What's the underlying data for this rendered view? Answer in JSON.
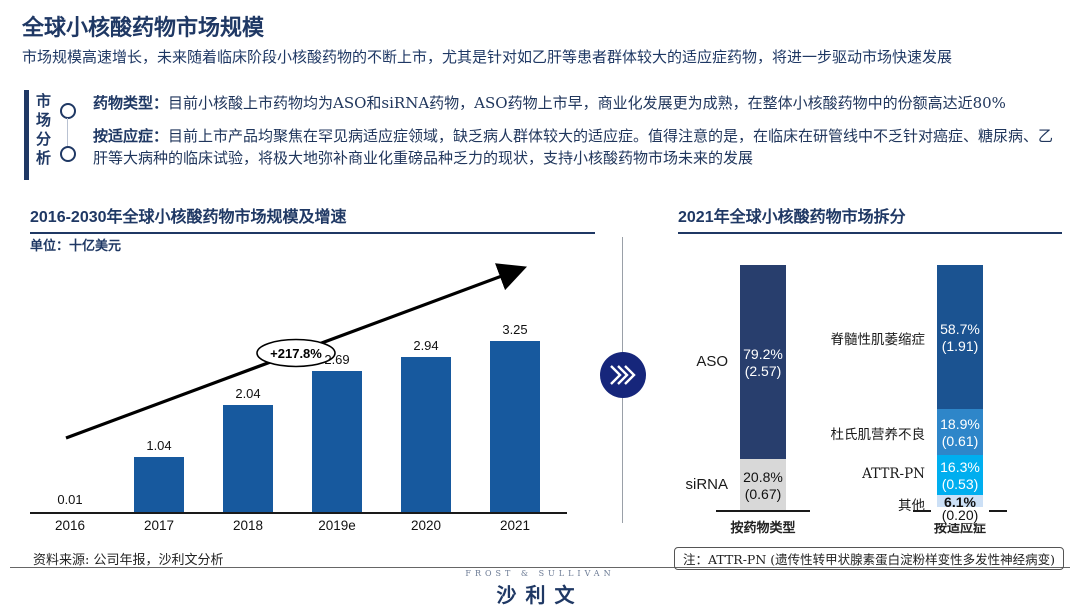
{
  "page": {
    "title": "全球小核酸药物市场规模",
    "subtitle": "市场规模高速增长，未来随着临床阶段小核酸药物的不断上市，尤其是针对如乙肝等患者群体较大的适应症药物，将进一步驱动市场快速发展"
  },
  "analysis": {
    "vertical_label": "市场分析",
    "bullets": [
      {
        "label": "药物类型：",
        "text": "目前小核酸上市药物均为ASO和siRNA药物，ASO药物上市早，商业化发展更为成熟，在整体小核酸药物中的份额高达近80%"
      },
      {
        "label": "按适应症：",
        "text": "目前上市产品均聚焦在罕见病适应症领域，缺乏病人群体较大的适应症。值得注意的是，在临床在研管线中不乏针对癌症、糖尿病、乙肝等大病种的临床试验，将极大地弥补商业化重磅品种乏力的现状，支持小核酸药物市场未来的发展"
      }
    ]
  },
  "left_chart": {
    "title": "2016-2030年全球小核酸药物市场规模及增速",
    "unit": "单位：十亿美元",
    "annotation": "+217.8%"
  },
  "right_chart": {
    "title": "2021年全球小核酸药物市场拆分"
  },
  "chart_data": [
    {
      "type": "bar",
      "title": "2016-2030年全球小核酸药物市场规模及增速",
      "unit": "十亿美元",
      "categories": [
        "2016",
        "2017",
        "2018",
        "2019e",
        "2020",
        "2021"
      ],
      "values": [
        0.01,
        1.04,
        2.04,
        2.69,
        2.94,
        3.25
      ],
      "annotation": "+217.8%",
      "bar_color": "#17599E",
      "ylim": [
        0,
        3.5
      ],
      "grid": false
    },
    {
      "type": "stacked-bar",
      "title": "2021年全球小核酸药物市场拆分",
      "unit": "十亿美元",
      "bars": [
        {
          "axis_label": "按药物类型",
          "segments": [
            {
              "label": "ASO",
              "pct": 79.2,
              "value": "2.57",
              "color": "#283E6D",
              "text_color": "#ffffff"
            },
            {
              "label": "siRNA",
              "pct": 20.8,
              "value": "0.67",
              "color": "#D8D8D8",
              "text_color": "#111111"
            }
          ]
        },
        {
          "axis_label": "按适应症",
          "segments": [
            {
              "label": "脊髓性肌萎缩症",
              "pct": 58.7,
              "value": "1.91",
              "color": "#1B5391",
              "text_color": "#ffffff"
            },
            {
              "label": "杜氏肌营养不良",
              "pct": 18.9,
              "value": "0.61",
              "color": "#2E86C9",
              "text_color": "#ffffff"
            },
            {
              "label": "ATTR-PN",
              "pct": 16.3,
              "value": "0.53",
              "color": "#00AEEF",
              "text_color": "#ffffff"
            },
            {
              "label": "其他",
              "pct": 6.1,
              "value": "0.20",
              "color": "#CCE0F6",
              "text_color": "#111111",
              "value_below": true
            }
          ]
        }
      ]
    }
  ],
  "footer": {
    "source": "资料来源: 公司年报，沙利文分析",
    "note": "注：ATTR-PN (遗传性转甲状腺素蛋白淀粉样变性多发性神经病变)",
    "logo_top": "FROST & SULLIVAN",
    "logo_main": "沙利文"
  }
}
